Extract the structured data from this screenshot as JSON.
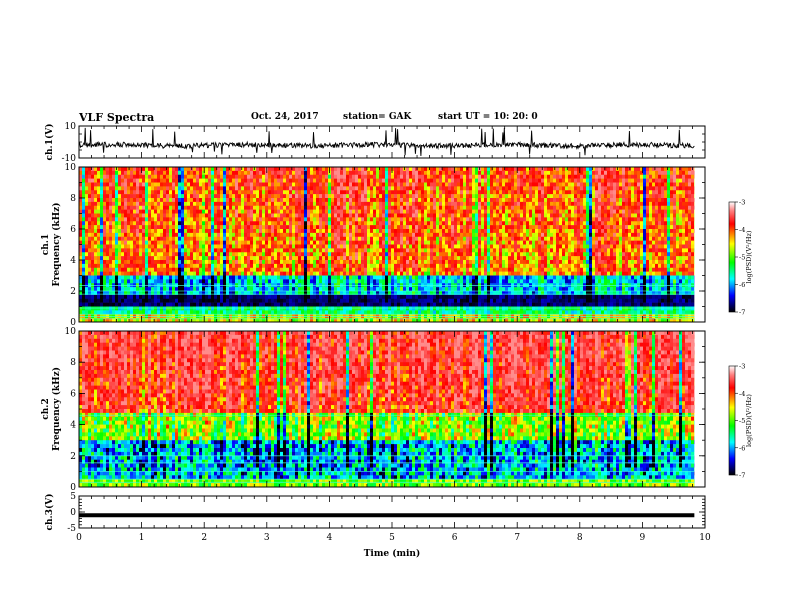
{
  "header": {
    "title": "VLF Spectra",
    "date": "Oct. 24, 2017",
    "station": "station= GAK",
    "start": "start  UT =   10: 20: 0"
  },
  "chart_data": [
    {
      "type": "line",
      "title": "",
      "ylabel": "ch.1(V)",
      "ylim": [
        -10,
        10
      ],
      "yticks": [
        "10",
        "-10"
      ],
      "series": [
        {
          "values": "noisy waveform around -2 V with sporadic spikes to +10 / -10 V"
        }
      ]
    },
    {
      "type": "heatmap",
      "ylabel_line1": "ch.1",
      "ylabel_line2": "Frequency (kHz)",
      "ylim": [
        0,
        10
      ],
      "xlim": [
        0,
        10
      ],
      "yticks": [
        "0",
        "2",
        "4",
        "6",
        "8",
        "10"
      ],
      "colorbar": {
        "label": "log(PSD)(V²/Hz)",
        "ticks": [
          "-3",
          "-4",
          "-5",
          "-6",
          "-7"
        ],
        "range": [
          -7,
          -3
        ]
      }
    },
    {
      "type": "heatmap",
      "ylabel_line1": "ch.2",
      "ylabel_line2": "Frequency (kHz)",
      "ylim": [
        0,
        10
      ],
      "xlim": [
        0,
        10
      ],
      "yticks": [
        "0",
        "2",
        "4",
        "6",
        "8",
        "10"
      ],
      "colorbar": {
        "label": "log(PSD)(V²/Hz)",
        "ticks": [
          "-3",
          "-4",
          "-5",
          "-6",
          "-7"
        ],
        "range": [
          -7,
          -3
        ]
      }
    },
    {
      "type": "line",
      "ylabel": "ch.3(V)",
      "ylim": [
        -5,
        5
      ],
      "yticks": [
        "5",
        "0",
        "-5"
      ],
      "series": [
        {
          "values": "constant level at about -1 V"
        }
      ]
    }
  ],
  "xaxis": {
    "label": "Time (min)",
    "ticks": [
      "0",
      "1",
      "2",
      "3",
      "4",
      "5",
      "6",
      "7",
      "8",
      "9",
      "10"
    ],
    "range": [
      0,
      10
    ]
  }
}
